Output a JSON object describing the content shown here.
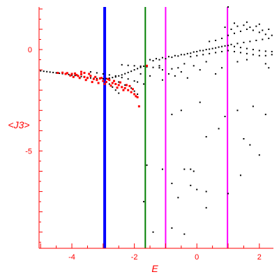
{
  "chart_data": {
    "type": "scatter",
    "xlabel": "E",
    "ylabel": "<J3>",
    "xlim": [
      -5.05,
      2.45
    ],
    "ylim": [
      -9.8,
      2.1
    ],
    "x_ticks": [
      -4,
      -2,
      0,
      2
    ],
    "x_tick_labels": [
      "-4",
      "-2",
      "0",
      "2"
    ],
    "y_ticks": [
      0,
      -5
    ],
    "y_tick_labels": [
      "0",
      "-5"
    ],
    "colors": {
      "axis": "#ff0000",
      "points_black": "#000000",
      "points_red": "#ff0000"
    },
    "vertical_lines": [
      {
        "x": -2.95,
        "color": "#0000ff"
      },
      {
        "x": -1.65,
        "color": "#008000"
      },
      {
        "x": -1.0,
        "color": "#ff00ff"
      },
      {
        "x": 0.98,
        "color": "#ff00ff"
      }
    ],
    "series": [
      {
        "color": "#000000",
        "points": [
          [
            -5.0,
            -1.05
          ],
          [
            -4.9,
            -1.07
          ],
          [
            -4.8,
            -1.09
          ],
          [
            -4.7,
            -1.11
          ],
          [
            -4.6,
            -1.13
          ],
          [
            -4.5,
            -1.15
          ],
          [
            -4.4,
            -1.17
          ],
          [
            -4.3,
            -1.19
          ],
          [
            -4.2,
            -1.21
          ],
          [
            -4.1,
            -1.23
          ],
          [
            -4.0,
            -1.26
          ],
          [
            -3.9,
            -1.28
          ],
          [
            -3.8,
            -1.31
          ],
          [
            -3.7,
            -1.33
          ],
          [
            -3.6,
            -1.36
          ],
          [
            -3.5,
            -1.38
          ],
          [
            -3.4,
            -1.4
          ],
          [
            -3.3,
            -1.42
          ],
          [
            -3.2,
            -1.43
          ],
          [
            -3.1,
            -1.44
          ],
          [
            -3.0,
            -1.44
          ],
          [
            -2.9,
            -1.43
          ],
          [
            -2.8,
            -1.41
          ],
          [
            -2.7,
            -1.38
          ],
          [
            -2.6,
            -1.35
          ],
          [
            -2.5,
            -1.3
          ],
          [
            -2.4,
            -1.25
          ],
          [
            -2.3,
            -1.19
          ],
          [
            -2.2,
            -1.13
          ],
          [
            -2.1,
            -1.07
          ],
          [
            -2.0,
            -1.0
          ],
          [
            -1.9,
            -0.94
          ],
          [
            -1.8,
            -0.88
          ],
          [
            -1.7,
            -0.82
          ],
          [
            -3.4,
            -1.1
          ],
          [
            -3.2,
            -1.15
          ],
          [
            -3.0,
            -1.2
          ],
          [
            -2.8,
            -1.25
          ],
          [
            -2.6,
            -1.3
          ],
          [
            -2.4,
            -1.38
          ],
          [
            -2.2,
            -1.45
          ],
          [
            -2.0,
            -1.55
          ],
          [
            -1.9,
            -1.6
          ],
          [
            -2.4,
            -0.75
          ],
          [
            -2.2,
            -0.78
          ],
          [
            -2.0,
            -0.8
          ],
          [
            -1.8,
            -0.82
          ],
          [
            -1.6,
            -0.85
          ],
          [
            -1.4,
            -0.88
          ],
          [
            -1.2,
            -0.9
          ],
          [
            -2.5,
            -1.6
          ],
          [
            -2.3,
            -1.75
          ],
          [
            -2.1,
            -1.9
          ],
          [
            -2.0,
            -2.05
          ],
          [
            -1.9,
            -2.2
          ],
          [
            -2.8,
            -1.7
          ],
          [
            -2.7,
            -1.85
          ],
          [
            -2.6,
            -2.0
          ],
          [
            -2.5,
            -2.15
          ],
          [
            -1.5,
            -0.5
          ],
          [
            -1.3,
            -0.45
          ],
          [
            -1.1,
            -0.4
          ],
          [
            -0.9,
            -0.35
          ],
          [
            -0.7,
            -0.3
          ],
          [
            -0.5,
            -0.25
          ],
          [
            -0.3,
            -0.2
          ],
          [
            -0.1,
            -0.12
          ],
          [
            0.1,
            -0.05
          ],
          [
            0.3,
            0.0
          ],
          [
            0.5,
            0.05
          ],
          [
            0.7,
            0.12
          ],
          [
            0.9,
            0.18
          ],
          [
            1.1,
            0.25
          ],
          [
            1.3,
            0.3
          ],
          [
            1.5,
            0.35
          ],
          [
            1.7,
            0.4
          ],
          [
            1.9,
            0.45
          ],
          [
            2.1,
            0.5
          ],
          [
            2.3,
            0.55
          ],
          [
            -1.4,
            -0.55
          ],
          [
            -1.2,
            -0.5
          ],
          [
            -1.0,
            -0.45
          ],
          [
            -0.8,
            -0.38
          ],
          [
            -0.6,
            -0.32
          ],
          [
            -0.4,
            -0.25
          ],
          [
            -0.2,
            -0.18
          ],
          [
            0.0,
            -0.1
          ],
          [
            0.2,
            -0.05
          ],
          [
            0.4,
            0.02
          ],
          [
            0.6,
            0.08
          ],
          [
            0.8,
            0.15
          ],
          [
            1.0,
            0.2
          ],
          [
            1.2,
            0.15
          ],
          [
            1.4,
            0.1
          ],
          [
            1.6,
            0.05
          ],
          [
            1.8,
            0.0
          ],
          [
            2.0,
            -0.05
          ],
          [
            2.2,
            -0.08
          ],
          [
            2.4,
            -0.1
          ],
          [
            -0.2,
            -0.35
          ],
          [
            0.0,
            -0.3
          ],
          [
            0.2,
            -0.25
          ],
          [
            0.4,
            -0.2
          ],
          [
            0.6,
            -0.15
          ],
          [
            0.8,
            -0.1
          ],
          [
            1.0,
            -0.05
          ],
          [
            1.2,
            -0.1
          ],
          [
            1.4,
            -0.15
          ],
          [
            1.6,
            -0.2
          ],
          [
            1.8,
            -0.25
          ],
          [
            2.0,
            -0.3
          ],
          [
            2.2,
            -0.3
          ],
          [
            2.4,
            -0.25
          ],
          [
            0.4,
            0.4
          ],
          [
            0.6,
            0.45
          ],
          [
            0.8,
            0.55
          ],
          [
            1.0,
            0.7
          ],
          [
            1.2,
            0.8
          ],
          [
            1.4,
            0.9
          ],
          [
            1.6,
            1.0
          ],
          [
            1.8,
            0.95
          ],
          [
            2.0,
            0.85
          ],
          [
            2.2,
            0.75
          ],
          [
            2.4,
            0.7
          ],
          [
            0.9,
            1.1
          ],
          [
            1.1,
            1.0
          ],
          [
            1.3,
            1.15
          ],
          [
            1.5,
            1.2
          ],
          [
            1.7,
            1.1
          ],
          [
            1.9,
            1.15
          ],
          [
            2.1,
            0.95
          ],
          [
            2.3,
            1.0
          ],
          [
            1.0,
            2.1
          ],
          [
            1.2,
            1.3
          ],
          [
            1.6,
            1.35
          ],
          [
            2.0,
            1.25
          ],
          [
            -1.2,
            -0.8
          ],
          [
            -1.1,
            -1.0
          ],
          [
            -0.9,
            -1.2
          ],
          [
            -0.8,
            -0.95
          ],
          [
            -0.7,
            -1.3
          ],
          [
            -0.6,
            -0.9
          ],
          [
            -0.5,
            -1.1
          ],
          [
            -0.4,
            -0.7
          ],
          [
            -0.3,
            -1.4
          ],
          [
            -0.1,
            -0.8
          ],
          [
            0.1,
            -1.0
          ],
          [
            0.3,
            -0.6
          ],
          [
            0.6,
            -1.2
          ],
          [
            0.8,
            -0.9
          ],
          [
            1.3,
            -0.6
          ],
          [
            1.6,
            -0.5
          ],
          [
            2.2,
            -0.7
          ],
          [
            2.3,
            -0.9
          ],
          [
            -1.7,
            -1.7
          ],
          [
            -1.5,
            -1.3
          ],
          [
            -1.1,
            -1.5
          ],
          [
            -1.8,
            -1.2
          ],
          [
            -0.8,
            -3.2
          ],
          [
            -0.5,
            -3.0
          ],
          [
            0.1,
            -2.6
          ],
          [
            0.3,
            -4.3
          ],
          [
            0.7,
            -3.9
          ],
          [
            1.3,
            -3.0
          ],
          [
            1.5,
            -4.4
          ],
          [
            1.7,
            -4.7
          ],
          [
            2.0,
            -5.2
          ],
          [
            2.2,
            -3.2
          ],
          [
            1.8,
            -2.8
          ],
          [
            0.9,
            -3.3
          ],
          [
            -1.6,
            -5.7
          ],
          [
            -1.1,
            -5.9
          ],
          [
            -0.8,
            -6.6
          ],
          [
            -0.4,
            -5.9
          ],
          [
            -0.2,
            -5.9
          ],
          [
            -0.1,
            -6.0
          ],
          [
            -0.2,
            -6.7
          ],
          [
            0.3,
            -7.0
          ],
          [
            1.4,
            -6.2
          ],
          [
            1.0,
            -7.1
          ],
          [
            0.3,
            -7.8
          ],
          [
            -0.6,
            -7.3
          ],
          [
            -1.4,
            -9.0
          ],
          [
            -0.8,
            -8.8
          ],
          [
            -0.4,
            -9.1
          ],
          [
            -1.7,
            -7.5
          ],
          [
            0.0,
            -6.9
          ]
        ]
      },
      {
        "color": "#ff0000",
        "points": [
          [
            -4.45,
            -1.15
          ],
          [
            -4.3,
            -1.14
          ],
          [
            -4.15,
            -1.16
          ],
          [
            -4.0,
            -1.2
          ],
          [
            -3.9,
            -1.18
          ],
          [
            -3.85,
            -1.25
          ],
          [
            -3.8,
            -1.3
          ],
          [
            -3.7,
            -1.22
          ],
          [
            -3.6,
            -1.35
          ],
          [
            -3.5,
            -1.4
          ],
          [
            -3.4,
            -1.3
          ],
          [
            -3.3,
            -1.45
          ],
          [
            -3.2,
            -1.5
          ],
          [
            -3.1,
            -1.42
          ],
          [
            -3.0,
            -1.55
          ],
          [
            -2.9,
            -1.6
          ],
          [
            -2.8,
            -1.5
          ],
          [
            -2.7,
            -1.65
          ],
          [
            -2.6,
            -1.7
          ],
          [
            -2.5,
            -1.75
          ],
          [
            -2.4,
            -1.85
          ],
          [
            -2.3,
            -1.9
          ],
          [
            -2.2,
            -2.0
          ],
          [
            -2.1,
            -2.1
          ],
          [
            -2.0,
            -2.2
          ],
          [
            -1.95,
            -2.3
          ],
          [
            -1.9,
            -2.35
          ],
          [
            -3.95,
            -1.35
          ],
          [
            -3.75,
            -1.4
          ],
          [
            -3.55,
            -1.5
          ],
          [
            -3.35,
            -1.6
          ],
          [
            -3.15,
            -1.65
          ],
          [
            -2.95,
            -1.7
          ],
          [
            -2.75,
            -1.78
          ],
          [
            -2.55,
            -1.88
          ],
          [
            -2.35,
            -2.0
          ],
          [
            -3.6,
            -1.15
          ],
          [
            -3.45,
            -1.2
          ],
          [
            -3.25,
            -1.35
          ],
          [
            -3.05,
            -1.4
          ],
          [
            -2.85,
            -1.45
          ],
          [
            -2.65,
            -1.55
          ],
          [
            -2.45,
            -1.62
          ],
          [
            -2.25,
            -1.75
          ],
          [
            -2.15,
            -1.8
          ],
          [
            -2.05,
            -1.95
          ],
          [
            -1.85,
            -2.8
          ],
          [
            -1.6,
            -0.8
          ],
          [
            -3.7,
            -1.1
          ],
          [
            -4.2,
            -1.2
          ],
          [
            -4.05,
            -1.28
          ]
        ]
      }
    ]
  }
}
